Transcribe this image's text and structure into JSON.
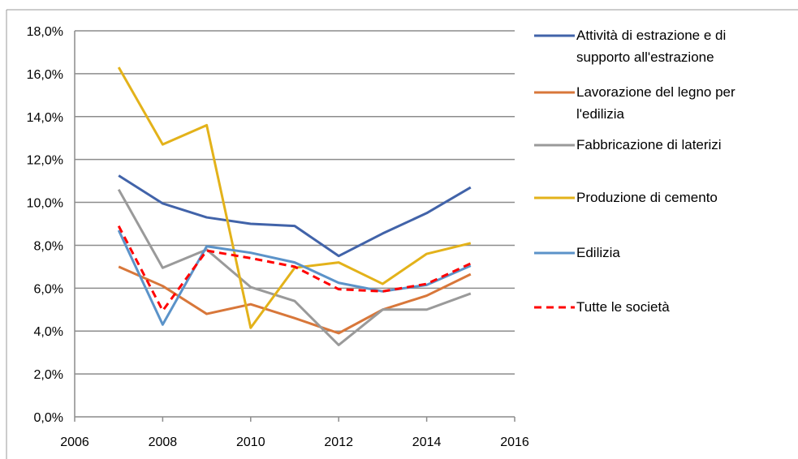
{
  "chart_data": {
    "type": "line",
    "xlim": [
      2006,
      2016
    ],
    "xticks": [
      2006,
      2008,
      2010,
      2012,
      2014,
      2016
    ],
    "ylim": [
      0,
      18
    ],
    "yticks": [
      {
        "value": 0,
        "label": "0,0%"
      },
      {
        "value": 2,
        "label": "2,0%"
      },
      {
        "value": 4,
        "label": "4,0%"
      },
      {
        "value": 6,
        "label": "6,0%"
      },
      {
        "value": 8,
        "label": "8,0%"
      },
      {
        "value": 10,
        "label": "10,0%"
      },
      {
        "value": 12,
        "label": "12,0%"
      },
      {
        "value": 14,
        "label": "14,0%"
      },
      {
        "value": 16,
        "label": "16,0%"
      },
      {
        "value": 18,
        "label": "18,0%"
      }
    ],
    "grid": true,
    "x": [
      2007,
      2008,
      2009,
      2010,
      2011,
      2012,
      2013,
      2014,
      2015
    ],
    "series": [
      {
        "name": "Attività di estrazione e di supporto all'estrazione",
        "color": "#4163a9",
        "values": [
          11.25,
          9.95,
          9.3,
          9.0,
          8.9,
          7.5,
          8.55,
          9.5,
          10.7
        ]
      },
      {
        "name": "Lavorazione del legno per l'edilizia",
        "color": "#d8773a",
        "values": [
          7.0,
          6.1,
          4.8,
          5.25,
          4.6,
          3.9,
          5.0,
          5.65,
          6.65
        ]
      },
      {
        "name": "Fabbricazione di laterizi",
        "color": "#9a9a9a",
        "values": [
          10.6,
          6.95,
          7.8,
          6.05,
          5.4,
          3.35,
          5.0,
          5.0,
          5.75
        ]
      },
      {
        "name": "Produzione di cemento",
        "color": "#e3b21a",
        "values": [
          16.3,
          12.7,
          13.6,
          4.15,
          6.95,
          7.2,
          6.2,
          7.6,
          8.1
        ]
      },
      {
        "name": "Edilizia",
        "color": "#5b93c9",
        "values": [
          8.7,
          4.3,
          7.95,
          7.65,
          7.2,
          6.25,
          5.85,
          6.15,
          7.05
        ]
      },
      {
        "name": "Tutte le società",
        "color": "#ff0000",
        "line_style": "dashed",
        "values": [
          8.9,
          4.95,
          7.75,
          7.4,
          7.0,
          5.95,
          5.85,
          6.2,
          7.15
        ]
      }
    ]
  }
}
